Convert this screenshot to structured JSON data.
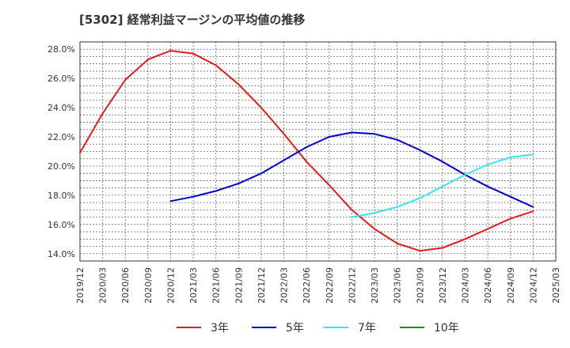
{
  "chart_data": {
    "type": "line",
    "title": "[5302]  経常利益マージンの平均値の推移",
    "xlabel": "",
    "ylabel": "",
    "x_ticks": [
      "2019/12",
      "2020/03",
      "2020/06",
      "2020/09",
      "2020/12",
      "2021/03",
      "2021/06",
      "2021/09",
      "2021/12",
      "2022/03",
      "2022/06",
      "2022/09",
      "2022/12",
      "2023/03",
      "2023/06",
      "2023/09",
      "2023/12",
      "2024/03",
      "2024/06",
      "2024/09",
      "2024/12",
      "2025/03"
    ],
    "y_ticks": [
      "14.0%",
      "16.0%",
      "18.0%",
      "20.0%",
      "22.0%",
      "24.0%",
      "26.0%",
      "28.0%"
    ],
    "ylim": [
      13.5,
      28.5
    ],
    "grid": true,
    "legend_position": "bottom",
    "series": [
      {
        "name": "3年",
        "color": "#e41a1c",
        "x": [
          "2019/12",
          "2020/03",
          "2020/06",
          "2020/09",
          "2020/12",
          "2021/03",
          "2021/06",
          "2021/09",
          "2021/12",
          "2022/03",
          "2022/06",
          "2022/09",
          "2022/12",
          "2023/03",
          "2023/06",
          "2023/09",
          "2023/12",
          "2024/03",
          "2024/06",
          "2024/09",
          "2024/12"
        ],
        "values": [
          20.9,
          23.6,
          25.9,
          27.3,
          27.9,
          27.7,
          26.9,
          25.6,
          24.0,
          22.2,
          20.3,
          18.7,
          17.0,
          15.7,
          14.7,
          14.2,
          14.4,
          15.0,
          15.7,
          16.4,
          16.9
        ]
      },
      {
        "name": "5年",
        "color": "#0000cc",
        "x": [
          "2020/12",
          "2021/03",
          "2021/06",
          "2021/09",
          "2021/12",
          "2022/03",
          "2022/06",
          "2022/09",
          "2022/12",
          "2023/03",
          "2023/06",
          "2023/09",
          "2023/12",
          "2024/03",
          "2024/06",
          "2024/09",
          "2024/12"
        ],
        "values": [
          17.6,
          17.9,
          18.3,
          18.8,
          19.5,
          20.4,
          21.3,
          22.0,
          22.3,
          22.2,
          21.8,
          21.1,
          20.3,
          19.4,
          18.6,
          17.9,
          17.2
        ]
      },
      {
        "name": "7年",
        "color": "#33e8f0",
        "x": [
          "2022/12",
          "2023/03",
          "2023/06",
          "2023/09",
          "2023/12",
          "2024/03",
          "2024/06",
          "2024/09",
          "2024/12"
        ],
        "values": [
          16.5,
          16.8,
          17.2,
          17.8,
          18.6,
          19.4,
          20.1,
          20.6,
          20.8
        ]
      },
      {
        "name": "10年",
        "color": "#228b22",
        "x": [],
        "values": []
      }
    ]
  }
}
